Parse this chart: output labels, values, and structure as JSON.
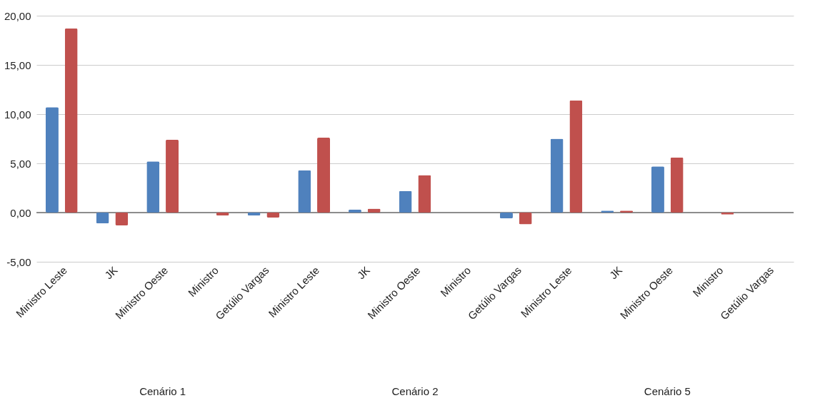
{
  "chart_data": {
    "type": "bar",
    "categories": [
      "Ministro Leste",
      "JK",
      "Ministro Oeste",
      "Ministro",
      "Getúlio Vargas",
      "Ministro Leste",
      "JK",
      "Ministro Oeste",
      "Ministro",
      "Getúlio Vargas",
      "Ministro Leste",
      "JK",
      "Ministro Oeste",
      "Ministro",
      "Getúlio Vargas"
    ],
    "series": [
      {
        "color": "#4f81bd",
        "values": [
          10.7,
          -1.1,
          5.2,
          0.0,
          -0.3,
          4.3,
          0.3,
          2.2,
          0.0,
          -0.6,
          7.5,
          0.2,
          4.7,
          0.0,
          0.0
        ]
      },
      {
        "color": "#c0504d",
        "values": [
          18.7,
          -1.3,
          7.4,
          -0.3,
          -0.5,
          7.6,
          0.4,
          3.8,
          0.0,
          -1.2,
          11.4,
          0.2,
          5.6,
          -0.2,
          0.0
        ]
      }
    ],
    "ylim": [
      -5,
      20
    ],
    "yticks": [
      {
        "value": -5,
        "label": "-5,00"
      },
      {
        "value": 0,
        "label": "0,00"
      },
      {
        "value": 5,
        "label": "5,00"
      },
      {
        "value": 10,
        "label": "10,00"
      },
      {
        "value": 15,
        "label": "15,00"
      },
      {
        "value": 20,
        "label": "20,00"
      }
    ],
    "grid": "y",
    "legend": false,
    "ref_lines": [
      {
        "axis": "y",
        "value": 0,
        "color": "#333333"
      }
    ],
    "annotations": [
      "Cenário 1",
      "Cenário 2",
      "Cenário 5"
    ]
  }
}
